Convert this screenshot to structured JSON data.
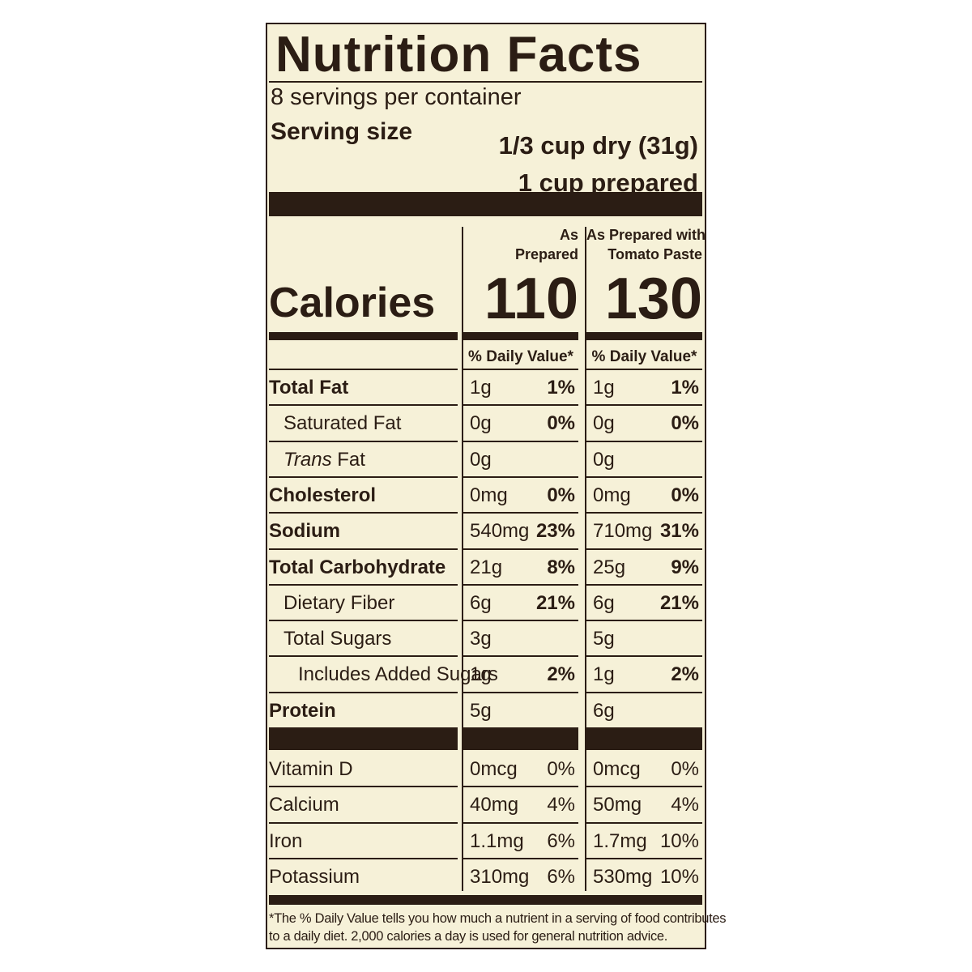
{
  "title": "Nutrition Facts",
  "servings": "8 servings per container",
  "serving_size": {
    "label": "Serving size",
    "amounts": [
      "1/3 cup dry (31g)",
      "1 cup prepared"
    ]
  },
  "columns": [
    {
      "header": [
        "As",
        "Prepared"
      ],
      "calories": "110",
      "daily_value_header": "% Daily Value*"
    },
    {
      "header": [
        "As Prepared with",
        "Tomato Paste"
      ],
      "calories": "130",
      "daily_value_header": "% Daily Value*"
    }
  ],
  "calories_label": "Calories",
  "nutrients": [
    {
      "name": "Total Fat",
      "bold": true,
      "indent": 0,
      "values": [
        {
          "amount": "1g",
          "dv": "1%"
        },
        {
          "amount": "1g",
          "dv": "1%"
        }
      ]
    },
    {
      "name": "Saturated Fat",
      "bold": false,
      "indent": 1,
      "values": [
        {
          "amount": "0g",
          "dv": "0%"
        },
        {
          "amount": "0g",
          "dv": "0%"
        }
      ]
    },
    {
      "name_italic": "Trans",
      "name": "Fat",
      "bold": false,
      "indent": 1,
      "values": [
        {
          "amount": "0g"
        },
        {
          "amount": "0g"
        }
      ]
    },
    {
      "name": "Cholesterol",
      "bold": true,
      "indent": 0,
      "values": [
        {
          "amount": "0mg",
          "dv": "0%"
        },
        {
          "amount": "0mg",
          "dv": "0%"
        }
      ]
    },
    {
      "name": "Sodium",
      "bold": true,
      "indent": 0,
      "values": [
        {
          "amount": "540mg",
          "dv": "23%"
        },
        {
          "amount": "710mg",
          "dv": "31%"
        }
      ]
    },
    {
      "name": "Total Carbohydrate",
      "bold": true,
      "indent": 0,
      "values": [
        {
          "amount": "21g",
          "dv": "8%"
        },
        {
          "amount": "25g",
          "dv": "9%"
        }
      ]
    },
    {
      "name": "Dietary Fiber",
      "bold": false,
      "indent": 1,
      "values": [
        {
          "amount": "6g",
          "dv": "21%"
        },
        {
          "amount": "6g",
          "dv": "21%"
        }
      ]
    },
    {
      "name": "Total Sugars",
      "bold": false,
      "indent": 1,
      "values": [
        {
          "amount": "3g"
        },
        {
          "amount": "5g"
        }
      ]
    },
    {
      "name": "Includes Added Sugars",
      "bold": false,
      "indent": 2,
      "values": [
        {
          "amount": "1g",
          "dv": "2%"
        },
        {
          "amount": "1g",
          "dv": "2%"
        }
      ]
    },
    {
      "name": "Protein",
      "bold": true,
      "indent": 0,
      "values": [
        {
          "amount": "5g"
        },
        {
          "amount": "6g"
        }
      ]
    }
  ],
  "vitamins": [
    {
      "name": "Vitamin D",
      "values": [
        {
          "amount": "0mcg",
          "dv": "0%"
        },
        {
          "amount": "0mcg",
          "dv": "0%"
        }
      ]
    },
    {
      "name": "Calcium",
      "values": [
        {
          "amount": "40mg",
          "dv": "4%"
        },
        {
          "amount": "50mg",
          "dv": "4%"
        }
      ]
    },
    {
      "name": "Iron",
      "values": [
        {
          "amount": "1.1mg",
          "dv": "6%"
        },
        {
          "amount": "1.7mg",
          "dv": "10%"
        }
      ]
    },
    {
      "name": "Potassium",
      "values": [
        {
          "amount": "310mg",
          "dv": "6%"
        },
        {
          "amount": "530mg",
          "dv": "10%"
        }
      ]
    }
  ],
  "footnote": [
    "*The % Daily Value tells you how much a nutrient in a serving of food contributes",
    "to a daily diet. 2,000 calories a day is used for general nutrition advice."
  ]
}
